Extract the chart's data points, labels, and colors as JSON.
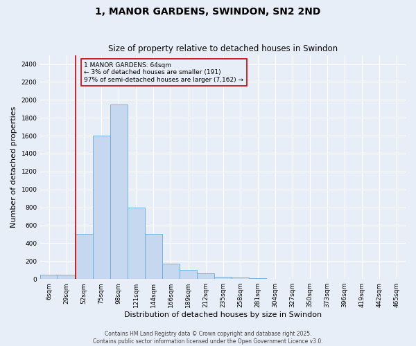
{
  "title": "1, MANOR GARDENS, SWINDON, SN2 2ND",
  "subtitle": "Size of property relative to detached houses in Swindon",
  "xlabel": "Distribution of detached houses by size in Swindon",
  "ylabel": "Number of detached properties",
  "categories": [
    "6sqm",
    "29sqm",
    "52sqm",
    "75sqm",
    "98sqm",
    "121sqm",
    "144sqm",
    "166sqm",
    "189sqm",
    "212sqm",
    "235sqm",
    "258sqm",
    "281sqm",
    "304sqm",
    "327sqm",
    "350sqm",
    "373sqm",
    "396sqm",
    "419sqm",
    "442sqm",
    "465sqm"
  ],
  "values": [
    50,
    50,
    500,
    1600,
    1950,
    800,
    500,
    170,
    100,
    60,
    25,
    15,
    10,
    5,
    3,
    2,
    2,
    1,
    0,
    0,
    0
  ],
  "bar_color": "#c5d8f0",
  "bar_edge_color": "#6aaad4",
  "vline_color": "#cc0000",
  "annotation_text": "1 MANOR GARDENS: 64sqm\n← 3% of detached houses are smaller (191)\n97% of semi-detached houses are larger (7,162) →",
  "annotation_box_color": "#cc0000",
  "ylim": [
    0,
    2500
  ],
  "yticks": [
    0,
    200,
    400,
    600,
    800,
    1000,
    1200,
    1400,
    1600,
    1800,
    2000,
    2200,
    2400
  ],
  "footer": "Contains HM Land Registry data © Crown copyright and database right 2025.\nContains public sector information licensed under the Open Government Licence v3.0.",
  "bg_color": "#e8eef8",
  "grid_color": "#ffffff",
  "title_fontsize": 10,
  "subtitle_fontsize": 8.5,
  "axis_label_fontsize": 8,
  "tick_fontsize": 6.5,
  "footer_fontsize": 5.5,
  "vline_x_index": 2
}
